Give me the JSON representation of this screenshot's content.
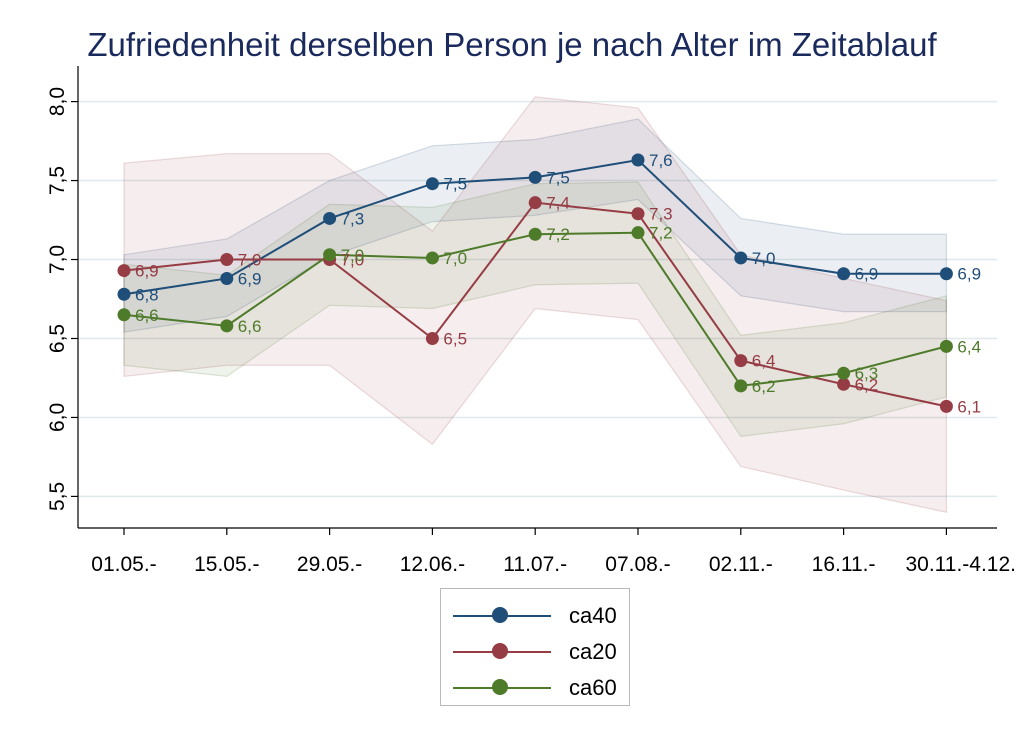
{
  "chart_data": {
    "type": "line",
    "title": "Zufriedenheit derselben Person je nach Alter im Zeitablauf",
    "xlabel": "",
    "ylabel": "",
    "categories": [
      "01.05.-",
      "15.05.-",
      "29.05.-",
      "12.06.-",
      "11.07.-",
      "07.08.-",
      "02.11.-",
      "16.11.-",
      "30.11.-4.12."
    ],
    "ylim": [
      5.3,
      8.2
    ],
    "yticks": [
      "5,5",
      "6,0",
      "6,5",
      "7,0",
      "7,5",
      "8,0"
    ],
    "ytick_values": [
      5.5,
      6.0,
      6.5,
      7.0,
      7.5,
      8.0
    ],
    "grid": true,
    "legend_position": "bottom",
    "series": [
      {
        "name": "ca40",
        "color": "#1f4e79",
        "values": [
          6.78,
          6.88,
          7.26,
          7.48,
          7.52,
          7.63,
          7.01,
          6.91,
          6.91
        ],
        "labels": [
          "6,8",
          "6,9",
          "7,3",
          "7,5",
          "7,5",
          "7,6",
          "7,0",
          "6,9",
          "6,9"
        ],
        "ci_upper": [
          7.03,
          7.13,
          7.5,
          7.72,
          7.76,
          7.89,
          7.26,
          7.16,
          7.16
        ],
        "ci_lower": [
          6.54,
          6.64,
          7.02,
          7.24,
          7.28,
          7.38,
          6.77,
          6.67,
          6.67
        ]
      },
      {
        "name": "ca20",
        "color": "#963c44",
        "values": [
          6.93,
          7.0,
          7.0,
          6.5,
          7.36,
          7.29,
          6.36,
          6.21,
          6.07
        ],
        "labels": [
          "6,9",
          "7,0",
          "7,0",
          "6,5",
          "7,4",
          "7,3",
          "6,4",
          "6,2",
          "6,1"
        ],
        "ci_upper": [
          7.61,
          7.67,
          7.67,
          7.18,
          8.03,
          7.96,
          7.03,
          6.88,
          6.74
        ],
        "ci_lower": [
          6.26,
          6.33,
          6.33,
          5.83,
          6.69,
          6.62,
          5.69,
          5.54,
          5.4
        ]
      },
      {
        "name": "ca60",
        "color": "#4e7b2a",
        "values": [
          6.65,
          6.58,
          7.03,
          7.01,
          7.16,
          7.17,
          6.2,
          6.28,
          6.45
        ],
        "labels": [
          "6,6",
          "6,6",
          "7,0",
          "7,0",
          "7,2",
          "7,2",
          "6,2",
          "6,3",
          "6,4"
        ],
        "ci_upper": [
          6.97,
          6.9,
          7.35,
          7.33,
          7.48,
          7.49,
          6.52,
          6.6,
          6.77
        ],
        "ci_lower": [
          6.33,
          6.26,
          6.71,
          6.69,
          6.84,
          6.85,
          5.88,
          5.96,
          6.13
        ]
      }
    ]
  }
}
